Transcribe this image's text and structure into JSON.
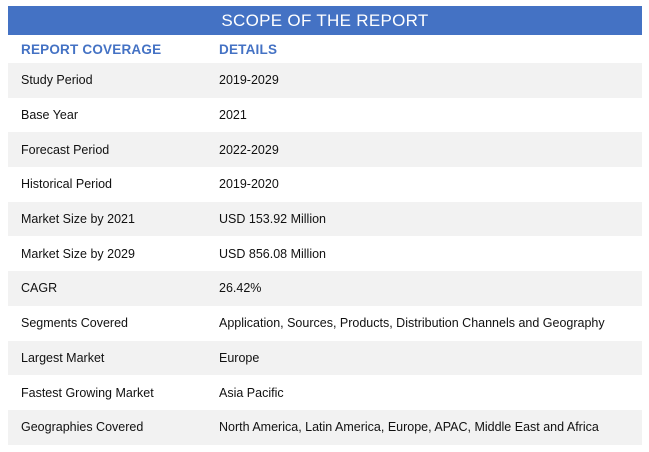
{
  "title": "SCOPE OF THE REPORT",
  "headers": {
    "coverage": "REPORT COVERAGE",
    "details": "DETAILS"
  },
  "rows": [
    {
      "label": "Study Period",
      "value": "2019-2029"
    },
    {
      "label": "Base Year",
      "value": "2021"
    },
    {
      "label": "Forecast Period",
      "value": "2022-2029"
    },
    {
      "label": "Historical Period",
      "value": "2019-2020"
    },
    {
      "label": "Market Size by 2021",
      "value": "USD 153.92 Million"
    },
    {
      "label": "Market Size by 2029",
      "value": "USD 856.08 Million"
    },
    {
      "label": "CAGR",
      "value": "26.42%"
    },
    {
      "label": "Segments Covered",
      "value": "Application, Sources, Products, Distribution Channels and Geography"
    },
    {
      "label": "Largest Market",
      "value": "Europe"
    },
    {
      "label": "Fastest Growing Market",
      "value": "Asia Pacific"
    },
    {
      "label": "Geographies Covered",
      "value": "North America, Latin America, Europe, APAC, Middle East and Africa"
    }
  ],
  "colors": {
    "accent": "#4472c4",
    "row_shade": "#f2f2f2"
  }
}
